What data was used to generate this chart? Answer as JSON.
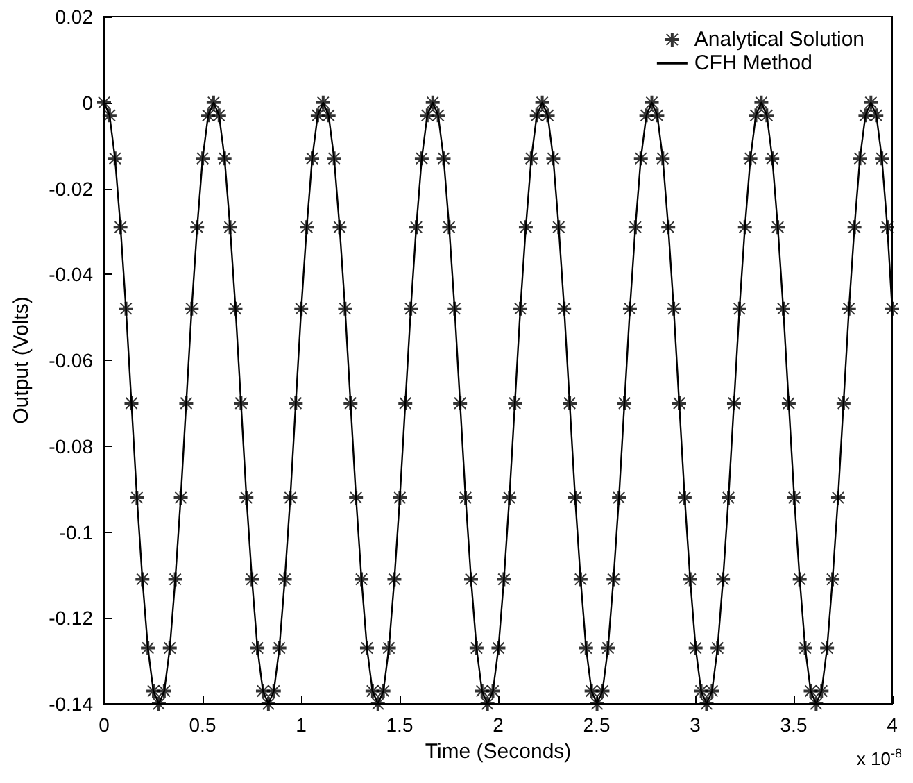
{
  "chart_data": {
    "type": "line",
    "xlabel": "Time (Seconds)",
    "ylabel": "Output (Volts)",
    "annotations": [
      "x 10$^{-8}$"
    ],
    "x": [
      0,
      0.0278,
      0.0556,
      0.0834,
      0.1112,
      0.139,
      0.1668,
      0.1946,
      0.2224,
      0.2502,
      0.278,
      0.3058,
      0.3336,
      0.3614,
      0.3892,
      0.417,
      0.4448,
      0.4726,
      0.5004,
      0.5282,
      0.556,
      0.5838,
      0.6116,
      0.6394,
      0.6672,
      0.695,
      0.7228,
      0.7506,
      0.7784,
      0.8062,
      0.834,
      0.8618,
      0.8896,
      0.9174,
      0.9452,
      0.973,
      1.0008,
      1.0286,
      1.0564,
      1.0842,
      1.112,
      1.1398,
      1.1676,
      1.1954,
      1.2232,
      1.251,
      1.2788,
      1.3066,
      1.3344,
      1.3622,
      1.39,
      1.4178,
      1.4456,
      1.4734,
      1.5012,
      1.529,
      1.5568,
      1.5846,
      1.6124,
      1.6402,
      1.668,
      1.6958,
      1.7236,
      1.7514,
      1.7792,
      1.807,
      1.8348,
      1.8626,
      1.8904,
      1.9182,
      1.946,
      1.9738,
      2.0016,
      2.0294,
      2.0572,
      2.085,
      2.1128,
      2.1406,
      2.1684,
      2.1962,
      2.224,
      2.2518,
      2.2796,
      2.3074,
      2.3352,
      2.363,
      2.3908,
      2.4186,
      2.4464,
      2.4742,
      2.502,
      2.5298,
      2.5576,
      2.5854,
      2.6132,
      2.641,
      2.6688,
      2.6966,
      2.7244,
      2.7522,
      2.78,
      2.8078,
      2.8356,
      2.8634,
      2.8912,
      2.919,
      2.9468,
      2.9746,
      3.0024,
      3.0302,
      3.058,
      3.0858,
      3.1136,
      3.1414,
      3.1692,
      3.197,
      3.2248,
      3.2526,
      3.2804,
      3.3082,
      3.336,
      3.3638,
      3.3916,
      3.4194,
      3.4472,
      3.475,
      3.5028,
      3.5306,
      3.5584,
      3.5862,
      3.614,
      3.6418,
      3.6696,
      3.6974,
      3.7252,
      3.753,
      3.7808,
      3.8086,
      3.8364,
      3.8642,
      3.892,
      3.9198,
      3.9476,
      3.9754,
      4
    ],
    "series": [
      {
        "name": "Analytical Solution",
        "type": "scatter",
        "marker": "star",
        "color": "#000000",
        "values": [
          0,
          -0.003,
          -0.013,
          -0.029,
          -0.048,
          -0.07,
          -0.092,
          -0.111,
          -0.127,
          -0.137,
          -0.14,
          -0.137,
          -0.127,
          -0.111,
          -0.092,
          -0.07,
          -0.048,
          -0.029,
          -0.013,
          -0.003,
          0,
          -0.003,
          -0.013,
          -0.029,
          -0.048,
          -0.07,
          -0.092,
          -0.111,
          -0.127,
          -0.137,
          -0.14,
          -0.137,
          -0.127,
          -0.111,
          -0.092,
          -0.07,
          -0.048,
          -0.029,
          -0.013,
          -0.003,
          0,
          -0.003,
          -0.013,
          -0.029,
          -0.048,
          -0.07,
          -0.092,
          -0.111,
          -0.127,
          -0.137,
          -0.14,
          -0.137,
          -0.127,
          -0.111,
          -0.092,
          -0.07,
          -0.048,
          -0.029,
          -0.013,
          -0.003,
          0,
          -0.003,
          -0.013,
          -0.029,
          -0.048,
          -0.07,
          -0.092,
          -0.111,
          -0.127,
          -0.137,
          -0.14,
          -0.137,
          -0.127,
          -0.111,
          -0.092,
          -0.07,
          -0.048,
          -0.029,
          -0.013,
          -0.003,
          0,
          -0.003,
          -0.013,
          -0.029,
          -0.048,
          -0.07,
          -0.092,
          -0.111,
          -0.127,
          -0.137,
          -0.14,
          -0.137,
          -0.127,
          -0.111,
          -0.092,
          -0.07,
          -0.048,
          -0.029,
          -0.013,
          -0.003,
          0,
          -0.003,
          -0.013,
          -0.029,
          -0.048,
          -0.07,
          -0.092,
          -0.111,
          -0.127,
          -0.137,
          -0.14,
          -0.137,
          -0.127,
          -0.111,
          -0.092,
          -0.07,
          -0.048,
          -0.029,
          -0.013,
          -0.003,
          0,
          -0.003,
          -0.013,
          -0.029,
          -0.048,
          -0.07,
          -0.092,
          -0.111,
          -0.127,
          -0.137,
          -0.14,
          -0.137,
          -0.127,
          -0.111,
          -0.092,
          -0.07,
          -0.048,
          -0.029,
          -0.013,
          -0.003,
          0,
          -0.003,
          -0.013,
          -0.029,
          -0.048
        ]
      },
      {
        "name": "CFH Method",
        "type": "line",
        "line_style": "solid",
        "color": "#000000",
        "values": [
          0,
          -0.003,
          -0.013,
          -0.029,
          -0.048,
          -0.07,
          -0.092,
          -0.111,
          -0.127,
          -0.137,
          -0.14,
          -0.137,
          -0.127,
          -0.111,
          -0.092,
          -0.07,
          -0.048,
          -0.029,
          -0.013,
          -0.003,
          0,
          -0.003,
          -0.013,
          -0.029,
          -0.048,
          -0.07,
          -0.092,
          -0.111,
          -0.127,
          -0.137,
          -0.14,
          -0.137,
          -0.127,
          -0.111,
          -0.092,
          -0.07,
          -0.048,
          -0.029,
          -0.013,
          -0.003,
          0,
          -0.003,
          -0.013,
          -0.029,
          -0.048,
          -0.07,
          -0.092,
          -0.111,
          -0.127,
          -0.137,
          -0.14,
          -0.137,
          -0.127,
          -0.111,
          -0.092,
          -0.07,
          -0.048,
          -0.029,
          -0.013,
          -0.003,
          0,
          -0.003,
          -0.013,
          -0.029,
          -0.048,
          -0.07,
          -0.092,
          -0.111,
          -0.127,
          -0.137,
          -0.14,
          -0.137,
          -0.127,
          -0.111,
          -0.092,
          -0.07,
          -0.048,
          -0.029,
          -0.013,
          -0.003,
          0,
          -0.003,
          -0.013,
          -0.029,
          -0.048,
          -0.07,
          -0.092,
          -0.111,
          -0.127,
          -0.137,
          -0.14,
          -0.137,
          -0.127,
          -0.111,
          -0.092,
          -0.07,
          -0.048,
          -0.029,
          -0.013,
          -0.003,
          0,
          -0.003,
          -0.013,
          -0.029,
          -0.048,
          -0.07,
          -0.092,
          -0.111,
          -0.127,
          -0.137,
          -0.14,
          -0.137,
          -0.127,
          -0.111,
          -0.092,
          -0.07,
          -0.048,
          -0.029,
          -0.013,
          -0.003,
          0,
          -0.003,
          -0.013,
          -0.029,
          -0.048,
          -0.07,
          -0.092,
          -0.111,
          -0.127,
          -0.137,
          -0.14,
          -0.137,
          -0.127,
          -0.111,
          -0.092,
          -0.07,
          -0.048,
          -0.029,
          -0.013,
          -0.003,
          0,
          -0.003,
          -0.013,
          -0.029,
          -0.048
        ]
      }
    ],
    "xlim": [
      0,
      4
    ],
    "xticks": [
      0,
      0.5,
      1,
      1.5,
      2,
      2.5,
      3,
      3.5,
      4
    ],
    "ylim": [
      -0.14,
      0.02
    ],
    "yticks": [
      -0.14,
      -0.12,
      -0.1,
      -0.08,
      -0.06,
      -0.04,
      -0.02,
      0,
      0.02
    ],
    "grid": false,
    "legend": "top right"
  }
}
